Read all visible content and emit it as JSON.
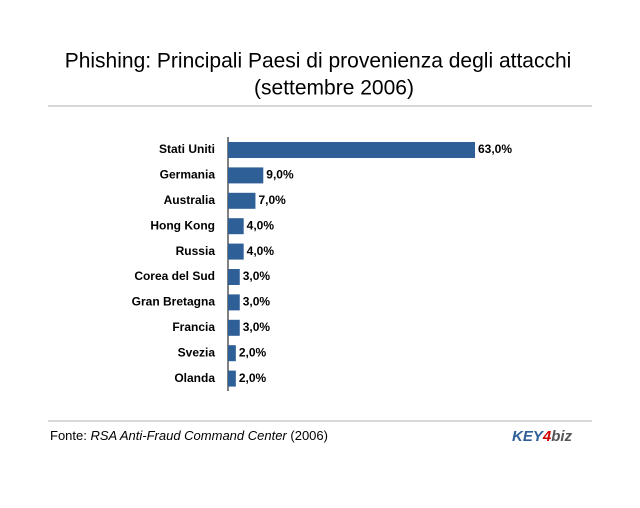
{
  "chart_data": {
    "type": "bar",
    "orientation": "horizontal",
    "title": "Phishing: Principali Paesi di provenienza degli attacchi",
    "subtitle": "(settembre 2006)",
    "categories": [
      "Stati Uniti",
      "Germania",
      "Australia",
      "Hong Kong",
      "Russia",
      "Corea del Sud",
      "Gran Bretagna",
      "Francia",
      "Svezia",
      "Olanda"
    ],
    "values": [
      63,
      9,
      7,
      4,
      4,
      3,
      3,
      3,
      2,
      2
    ],
    "value_labels": [
      "63,0%",
      "9,0%",
      "7,0%",
      "4,0%",
      "4,0%",
      "3,0%",
      "3,0%",
      "3,0%",
      "2,0%",
      "2,0%"
    ],
    "color": "#2f5f97",
    "source": {
      "prefix": "Fonte:",
      "name": "RSA Anti-Fraud Command Center",
      "year": "(2006)"
    },
    "logo": [
      "KEY",
      "4",
      "biz"
    ]
  }
}
